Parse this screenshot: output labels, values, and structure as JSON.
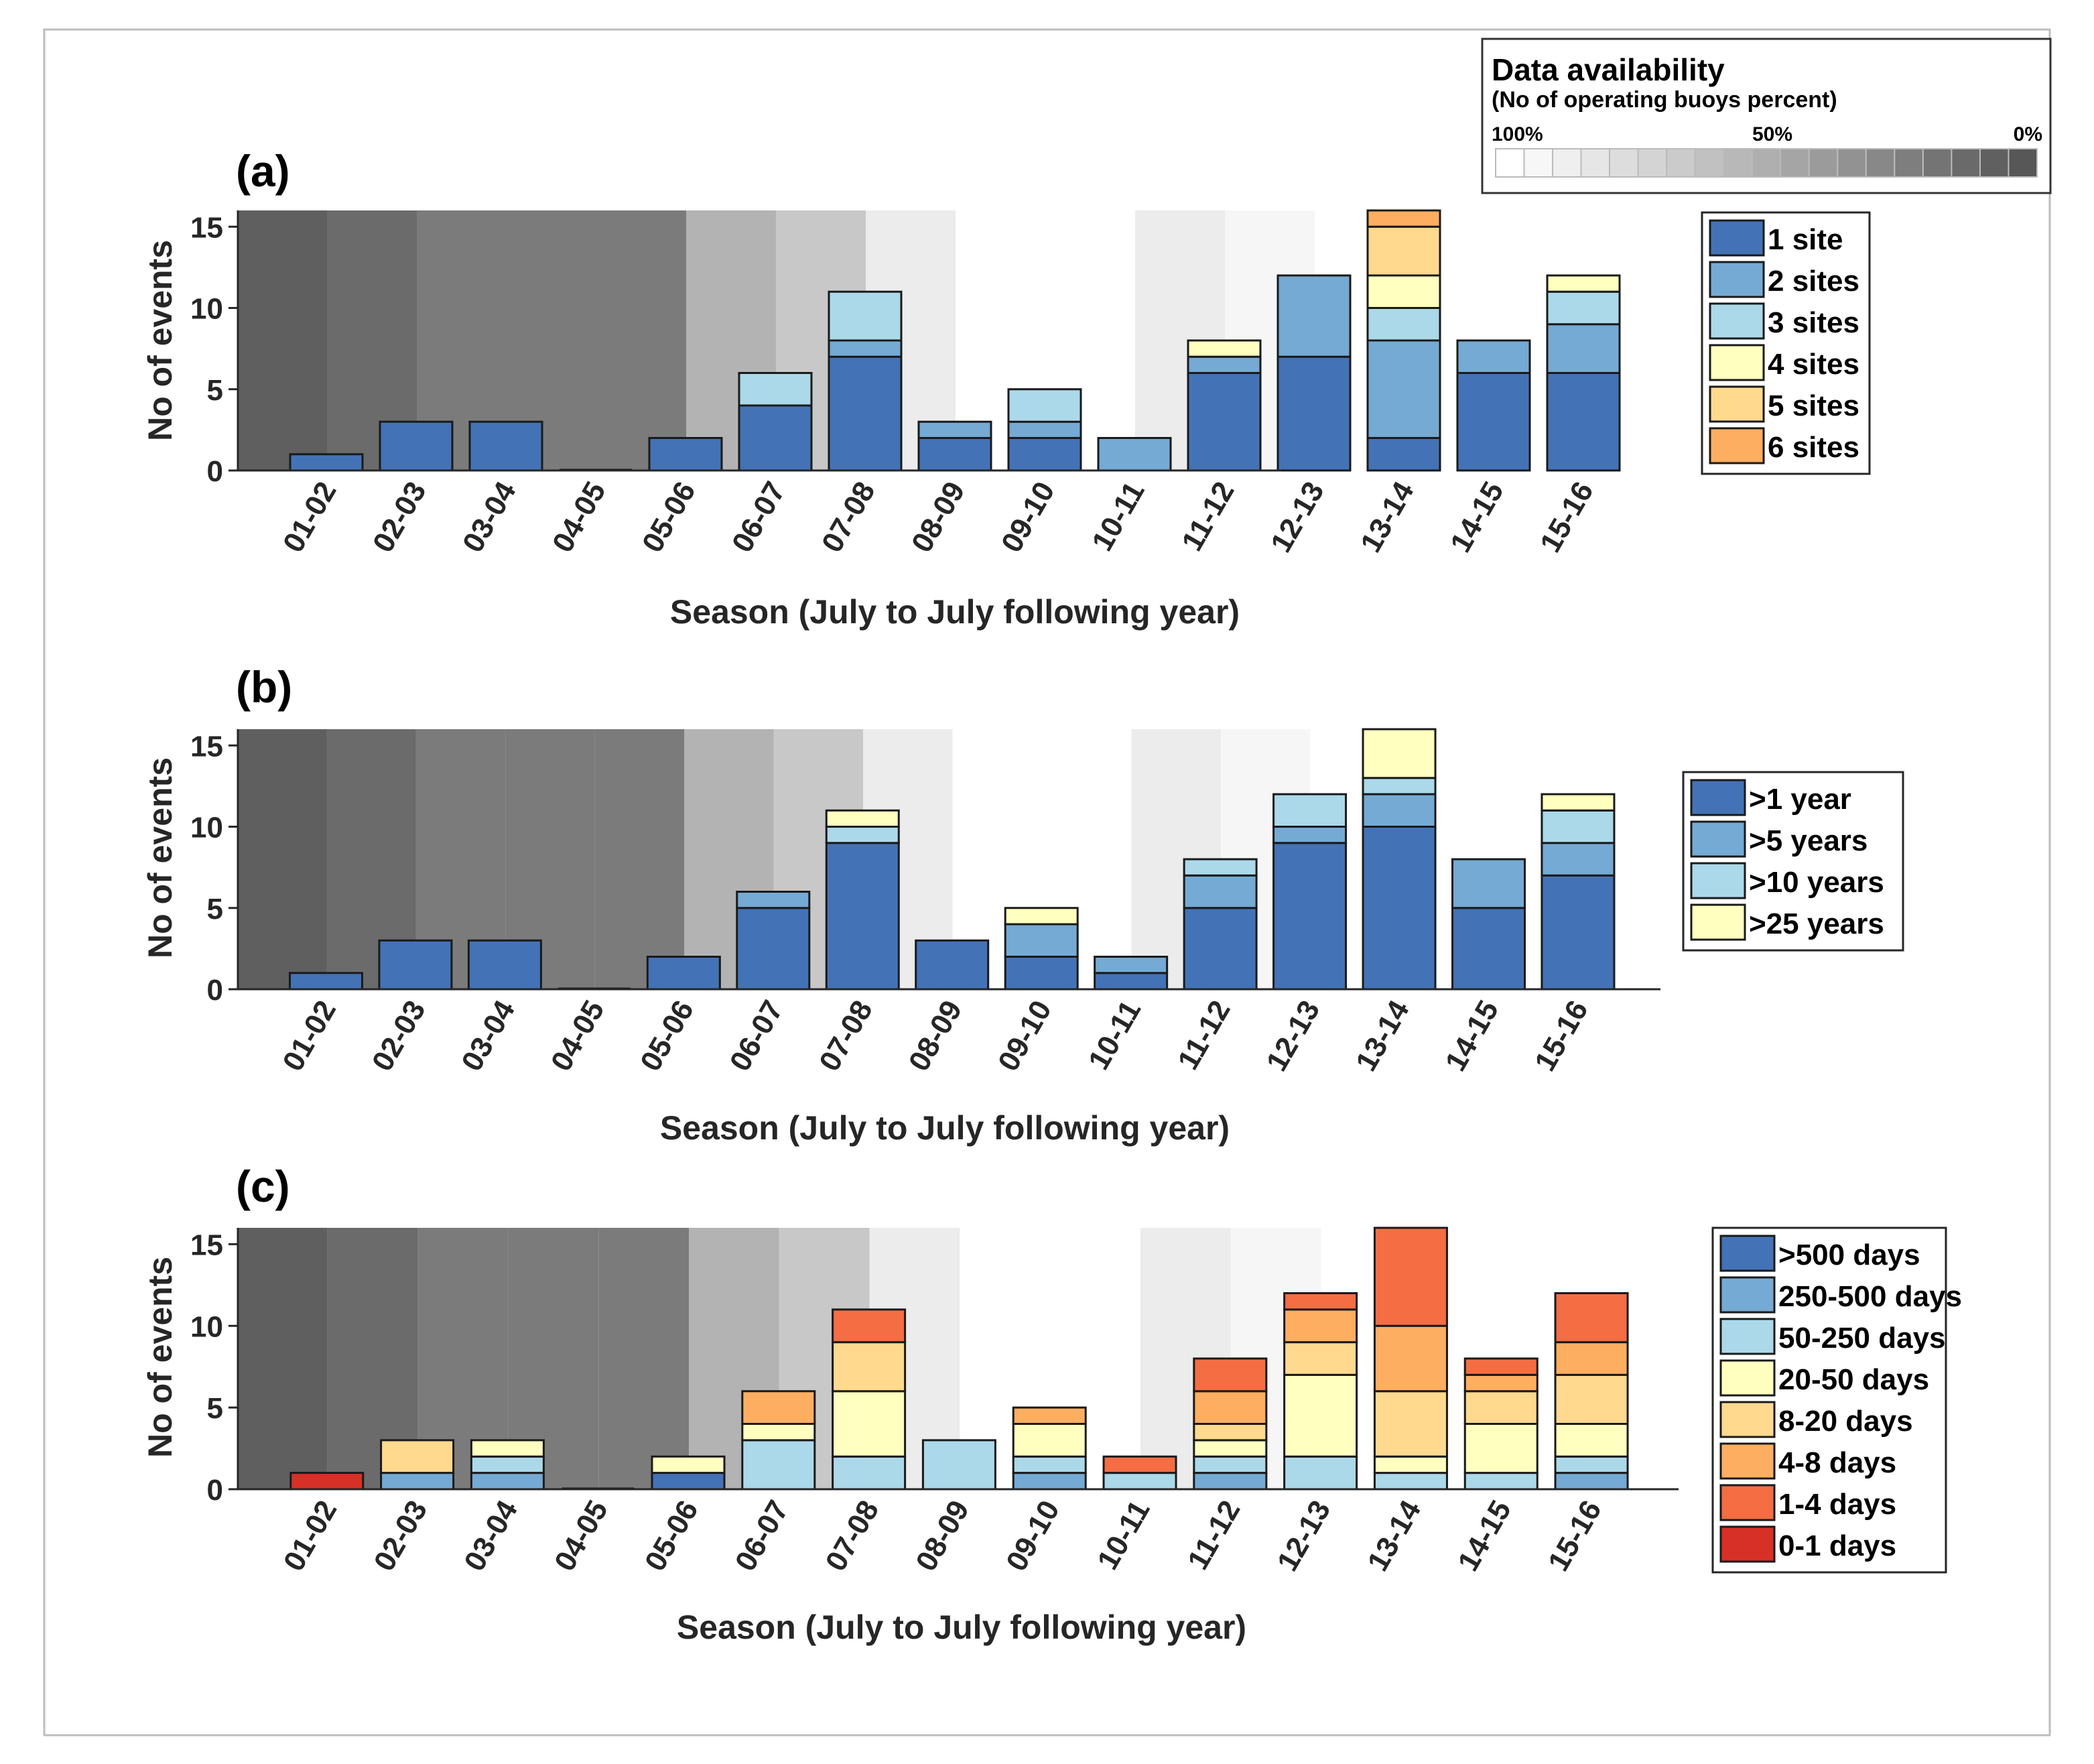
{
  "availability_legend": {
    "title": "Data availability",
    "subtitle": "(No of operating buoys percent)",
    "tick_labels": [
      "100%",
      "50%",
      "0%"
    ],
    "shade_colors": [
      "#ffffff",
      "#f7f7f7",
      "#efefef",
      "#e6e6e6",
      "#dddddd",
      "#d4d4d4",
      "#cbcbcb",
      "#c1c1c1",
      "#b8b8b8",
      "#afafaf",
      "#a5a5a5",
      "#9b9b9b",
      "#929292",
      "#888888",
      "#7e7e7e",
      "#747474",
      "#6a6a6a",
      "#606060",
      "#575757"
    ]
  },
  "chart_data": [
    {
      "type": "bar",
      "stacked": true,
      "panel_label": "(a)",
      "xlabel": "Season (July to July following year)",
      "ylabel": "No of events",
      "categories": [
        "01-02",
        "02-03",
        "03-04",
        "04-05",
        "05-06",
        "06-07",
        "07-08",
        "08-09",
        "09-10",
        "10-11",
        "11-12",
        "12-13",
        "13-14",
        "14-15",
        "15-16"
      ],
      "ylim": [
        0,
        16
      ],
      "yticks": [
        0,
        5,
        10,
        15
      ],
      "background_shades": [
        "#5f5f5f",
        "#6b6b6b",
        "#7b7b7b",
        "#7b7b7b",
        "#7b7b7b",
        "#b3b3b3",
        "#c8c8c8",
        "#ececec",
        "#ffffff",
        "#ffffff",
        "#ececec",
        "#f6f6f6",
        "#ffffff",
        "#ffffff",
        "#ffffff"
      ],
      "legend_position": "right",
      "series": [
        {
          "name": "1 site",
          "color": "#4373b6",
          "values": [
            1,
            3,
            3,
            0,
            2,
            4,
            7,
            2,
            2,
            0,
            6,
            7,
            2,
            6,
            6
          ]
        },
        {
          "name": "2 sites",
          "color": "#74aad4",
          "values": [
            0,
            0,
            0,
            0,
            0,
            0,
            1,
            1,
            1,
            2,
            1,
            5,
            6,
            2,
            3
          ]
        },
        {
          "name": "3 sites",
          "color": "#abd9e9",
          "values": [
            0,
            0,
            0,
            0,
            0,
            2,
            3,
            0,
            2,
            0,
            0,
            0,
            2,
            0,
            2
          ]
        },
        {
          "name": "4 sites",
          "color": "#ffffbf",
          "values": [
            0,
            0,
            0,
            0,
            0,
            0,
            0,
            0,
            0,
            0,
            1,
            0,
            2,
            0,
            1
          ]
        },
        {
          "name": "5 sites",
          "color": "#fed98e",
          "values": [
            0,
            0,
            0,
            0,
            0,
            0,
            0,
            0,
            0,
            0,
            0,
            0,
            3,
            0,
            0
          ]
        },
        {
          "name": "6 sites",
          "color": "#fdae61",
          "values": [
            0,
            0,
            0,
            0,
            0,
            0,
            0,
            0,
            0,
            0,
            0,
            0,
            1,
            0,
            0
          ]
        }
      ]
    },
    {
      "type": "bar",
      "stacked": true,
      "panel_label": "(b)",
      "xlabel": "Season (July to July following year)",
      "ylabel": "No of events",
      "categories": [
        "01-02",
        "02-03",
        "03-04",
        "04-05",
        "05-06",
        "06-07",
        "07-08",
        "08-09",
        "09-10",
        "10-11",
        "11-12",
        "12-13",
        "13-14",
        "14-15",
        "15-16"
      ],
      "ylim": [
        0,
        16
      ],
      "yticks": [
        0,
        5,
        10,
        15
      ],
      "background_shades": [
        "#5f5f5f",
        "#6b6b6b",
        "#7b7b7b",
        "#7b7b7b",
        "#7b7b7b",
        "#b3b3b3",
        "#c8c8c8",
        "#ececec",
        "#ffffff",
        "#ffffff",
        "#ececec",
        "#f6f6f6",
        "#ffffff",
        "#ffffff",
        "#ffffff"
      ],
      "legend_position": "right",
      "series": [
        {
          "name": ">1 year",
          "color": "#4373b6",
          "values": [
            1,
            3,
            3,
            0,
            2,
            5,
            9,
            3,
            2,
            1,
            5,
            9,
            10,
            5,
            7
          ]
        },
        {
          "name": ">5 years",
          "color": "#74aad4",
          "values": [
            0,
            0,
            0,
            0,
            0,
            1,
            0,
            0,
            2,
            1,
            2,
            1,
            2,
            3,
            2
          ]
        },
        {
          "name": ">10 years",
          "color": "#abd9e9",
          "values": [
            0,
            0,
            0,
            0,
            0,
            0,
            1,
            0,
            0,
            0,
            1,
            2,
            1,
            0,
            2
          ]
        },
        {
          "name": ">25 years",
          "color": "#ffffbf",
          "values": [
            0,
            0,
            0,
            0,
            0,
            0,
            1,
            0,
            1,
            0,
            0,
            0,
            3,
            0,
            1
          ]
        }
      ]
    },
    {
      "type": "bar",
      "stacked": true,
      "panel_label": "(c)",
      "xlabel": "Season (July to July following year)",
      "ylabel": "No of events",
      "categories": [
        "01-02",
        "02-03",
        "03-04",
        "04-05",
        "05-06",
        "06-07",
        "07-08",
        "08-09",
        "09-10",
        "10-11",
        "11-12",
        "12-13",
        "13-14",
        "14-15",
        "15-16"
      ],
      "ylim": [
        0,
        16
      ],
      "yticks": [
        0,
        5,
        10,
        15
      ],
      "background_shades": [
        "#5f5f5f",
        "#6b6b6b",
        "#7b7b7b",
        "#7b7b7b",
        "#7b7b7b",
        "#b3b3b3",
        "#c8c8c8",
        "#ececec",
        "#ffffff",
        "#ffffff",
        "#ececec",
        "#f6f6f6",
        "#ffffff",
        "#ffffff",
        "#ffffff"
      ],
      "legend_position": "right",
      "series": [
        {
          "name": ">500 days",
          "color": "#4373b6",
          "values": [
            0,
            0,
            0,
            0,
            1,
            0,
            0,
            0,
            0,
            0,
            0,
            0,
            0,
            0,
            0
          ]
        },
        {
          "name": "250-500 days",
          "color": "#74aad4",
          "values": [
            0,
            1,
            1,
            0,
            0,
            0,
            0,
            0,
            1,
            0,
            1,
            0,
            0,
            0,
            1
          ]
        },
        {
          "name": "50-250 days",
          "color": "#abd9e9",
          "values": [
            0,
            0,
            1,
            0,
            0,
            3,
            2,
            3,
            1,
            1,
            1,
            2,
            1,
            1,
            1
          ]
        },
        {
          "name": "20-50 days",
          "color": "#ffffbf",
          "values": [
            0,
            0,
            1,
            0,
            1,
            1,
            4,
            0,
            2,
            0,
            1,
            5,
            1,
            3,
            2
          ]
        },
        {
          "name": "8-20 days",
          "color": "#fed98e",
          "values": [
            0,
            2,
            0,
            0,
            0,
            0,
            3,
            0,
            0,
            0,
            1,
            2,
            4,
            2,
            3
          ]
        },
        {
          "name": "4-8 days",
          "color": "#fdae61",
          "values": [
            0,
            0,
            0,
            0,
            0,
            2,
            0,
            0,
            1,
            0,
            2,
            2,
            4,
            1,
            2
          ]
        },
        {
          "name": "1-4 days",
          "color": "#f46d43",
          "values": [
            0,
            0,
            0,
            0,
            0,
            0,
            2,
            0,
            0,
            1,
            2,
            1,
            6,
            1,
            3
          ]
        },
        {
          "name": "0-1 days",
          "color": "#d73027",
          "values": [
            1,
            0,
            0,
            0,
            0,
            0,
            0,
            0,
            0,
            0,
            0,
            0,
            0,
            0,
            0
          ]
        }
      ]
    }
  ]
}
